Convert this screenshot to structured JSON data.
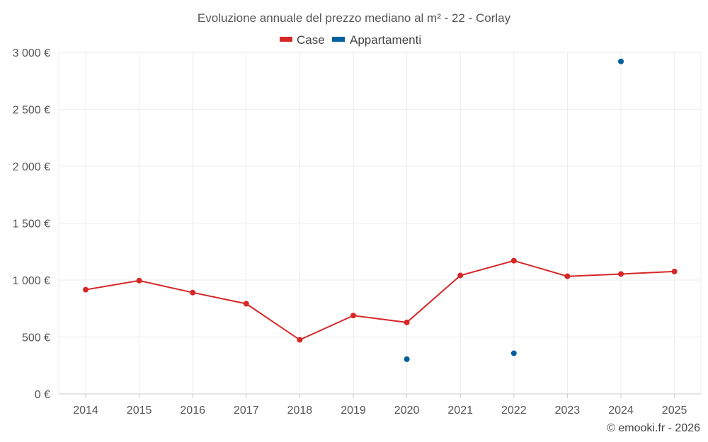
{
  "chart_data": {
    "type": "line",
    "title": "Evoluzione annuale del prezzo mediano al m² - 22 - Corlay",
    "categories": [
      "2014",
      "2015",
      "2016",
      "2017",
      "2018",
      "2019",
      "2020",
      "2021",
      "2022",
      "2023",
      "2024",
      "2025"
    ],
    "ylim": [
      0,
      3000
    ],
    "yticks": [
      0,
      500,
      1000,
      1500,
      2000,
      2500,
      3000
    ],
    "ytick_labels": [
      "0 €",
      "500 €",
      "1 000 €",
      "1 500 €",
      "2 000 €",
      "2 500 €",
      "3 000 €"
    ],
    "grid": true,
    "legend_position": "top-center",
    "series": [
      {
        "name": "Case",
        "color": "#d62728",
        "values": [
          915,
          995,
          890,
          792,
          475,
          688,
          628,
          1040,
          1170,
          1033,
          1053,
          1075
        ]
      },
      {
        "name": "Appartamenti",
        "color": "#00609e",
        "values": [
          null,
          null,
          null,
          null,
          null,
          null,
          305,
          null,
          357,
          null,
          2920,
          null
        ]
      }
    ],
    "credit": "© emooki.fr - 2026"
  }
}
